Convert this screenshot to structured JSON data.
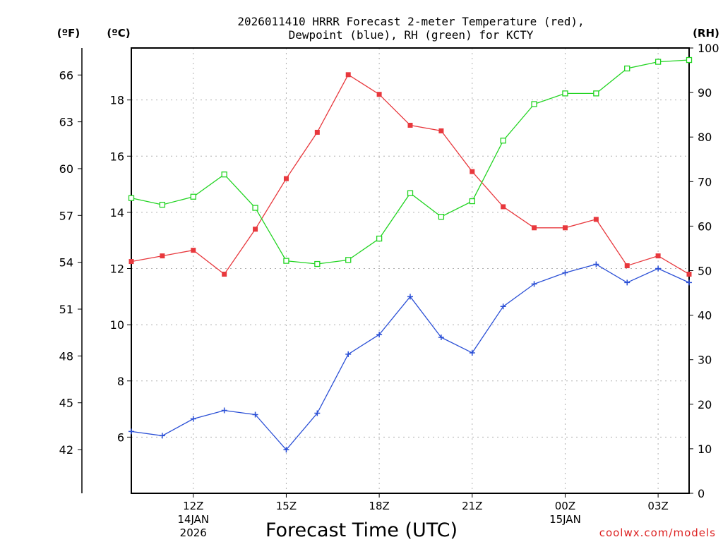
{
  "chart_data": {
    "type": "line",
    "title_line1": "2026011410 HRRR Forecast 2-meter Temperature (red),",
    "title_line2": "Dewpoint (blue), RH (green) for KCTY",
    "xlabel": "Forecast Time (UTC)",
    "unit_f": "(ºF)",
    "unit_c": "(ºC)",
    "unit_rh": "(RH)",
    "credit": "coolwx.com/models",
    "x_hours": [
      10,
      11,
      12,
      13,
      14,
      15,
      16,
      17,
      18,
      19,
      20,
      21,
      22,
      23,
      24,
      25,
      26,
      27,
      28
    ],
    "x_range": [
      10,
      28
    ],
    "x_ticks": [
      {
        "hour": 12,
        "label": "12Z",
        "date1": "14JAN",
        "date2": "2026"
      },
      {
        "hour": 15,
        "label": "15Z"
      },
      {
        "hour": 18,
        "label": "18Z"
      },
      {
        "hour": 21,
        "label": "21Z"
      },
      {
        "hour": 24,
        "label": "00Z",
        "date1": "15JAN"
      },
      {
        "hour": 27,
        "label": "03Z"
      }
    ],
    "y_celsius_range": [
      4.0,
      19.85
    ],
    "y_celsius_ticks": [
      "6",
      "8",
      "10",
      "12",
      "14",
      "16",
      "18"
    ],
    "y_fahrenheit_ticks": [
      "42",
      "45",
      "48",
      "51",
      "54",
      "57",
      "60",
      "63",
      "66"
    ],
    "y_rh_range": [
      0,
      100
    ],
    "y_rh_ticks": [
      "0",
      "10",
      "20",
      "30",
      "40",
      "50",
      "60",
      "70",
      "80",
      "90",
      "100"
    ],
    "series": [
      {
        "key": "temperature",
        "color": "#e8383d",
        "marker": "filled-square",
        "axis": "celsius",
        "values": [
          12.25,
          12.45,
          12.65,
          11.8,
          13.4,
          15.2,
          16.85,
          18.9,
          18.2,
          17.1,
          16.9,
          15.45,
          14.2,
          13.45,
          13.45,
          13.75,
          12.1,
          12.45,
          11.8
        ]
      },
      {
        "key": "dewpoint",
        "color": "#2a4fd6",
        "marker": "plus",
        "axis": "celsius",
        "values": [
          6.2,
          6.05,
          6.65,
          6.95,
          6.8,
          5.55,
          6.85,
          8.95,
          9.65,
          11.0,
          9.55,
          9.0,
          10.65,
          11.45,
          11.85,
          12.15,
          11.5,
          12.0,
          11.5
        ]
      },
      {
        "key": "rh",
        "color": "#22d422",
        "marker": "open-square",
        "axis": "rh",
        "values": [
          66.3,
          64.8,
          66.6,
          71.6,
          64.1,
          52.2,
          51.5,
          52.4,
          57.2,
          67.4,
          62.1,
          65.6,
          79.2,
          87.4,
          89.8,
          89.8,
          95.4,
          96.9,
          97.3
        ]
      }
    ]
  }
}
